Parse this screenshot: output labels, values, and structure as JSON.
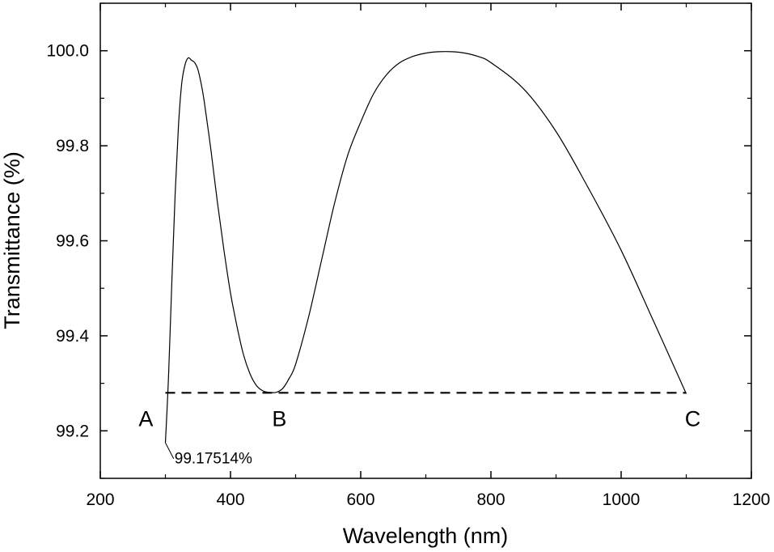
{
  "chart_data": {
    "type": "line",
    "title": "",
    "xlabel": "Wavelength (nm)",
    "ylabel": "Transmittance (%)",
    "xlim": [
      200,
      1200
    ],
    "ylim": [
      99.1,
      100.1
    ],
    "xticks": [
      200,
      400,
      600,
      800,
      1000,
      1200
    ],
    "yticks": [
      99.2,
      99.4,
      99.6,
      99.8,
      100.0
    ],
    "ytick_labels": [
      "99.2",
      "99.4",
      "99.6",
      "99.8",
      "100.0"
    ],
    "grid": false,
    "series": [
      {
        "x": [
          300,
          305,
          310,
          315,
          320,
          325,
          330,
          335,
          340,
          345,
          350,
          355,
          360,
          370,
          380,
          390,
          400,
          410,
          420,
          430,
          440,
          450,
          460,
          470,
          480,
          490,
          500,
          520,
          540,
          560,
          580,
          600,
          620,
          640,
          660,
          680,
          700,
          720,
          740,
          760,
          780,
          800,
          850,
          900,
          950,
          1000,
          1050,
          1100
        ],
        "y": [
          99.175,
          99.32,
          99.52,
          99.7,
          99.84,
          99.93,
          99.97,
          99.985,
          99.98,
          99.975,
          99.96,
          99.93,
          99.89,
          99.79,
          99.68,
          99.58,
          99.49,
          99.42,
          99.36,
          99.32,
          99.295,
          99.284,
          99.281,
          99.281,
          99.289,
          99.31,
          99.34,
          99.44,
          99.56,
          99.68,
          99.78,
          99.85,
          99.91,
          99.95,
          99.975,
          99.988,
          99.995,
          99.998,
          99.998,
          99.995,
          99.988,
          99.975,
          99.92,
          99.83,
          99.71,
          99.58,
          99.43,
          99.278
        ]
      },
      {
        "style": "dashed",
        "x": [
          300,
          1100
        ],
        "y": [
          99.28,
          99.28
        ]
      }
    ],
    "annotations": [
      {
        "text": "A",
        "x": 270,
        "y": 99.225
      },
      {
        "text": "B",
        "x": 475,
        "y": 99.225
      },
      {
        "text": "C",
        "x": 1110,
        "y": 99.225
      },
      {
        "text": "99.17514%",
        "x": 350,
        "y": 99.155,
        "point": [
          300,
          99.175
        ]
      }
    ]
  }
}
